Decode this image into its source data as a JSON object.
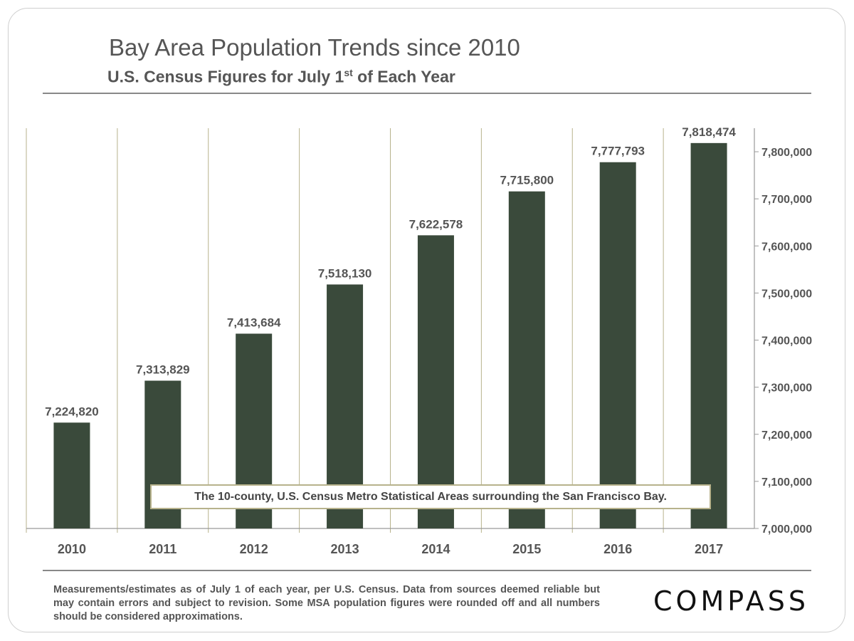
{
  "title": "Bay Area Population Trends since 2010",
  "subtitle": {
    "text": "U.S. Census Figures for July 1",
    "sup": "st",
    "tail": " of Each Year"
  },
  "chart_data": {
    "type": "bar",
    "categories": [
      "2010",
      "2011",
      "2012",
      "2013",
      "2014",
      "2015",
      "2016",
      "2017"
    ],
    "values": [
      7224820,
      7313829,
      7413684,
      7518130,
      7622578,
      7715800,
      7777793,
      7818474
    ],
    "data_labels": [
      "7,224,820",
      "7,313,829",
      "7,413,684",
      "7,518,130",
      "7,622,578",
      "7,715,800",
      "7,777,793",
      "7,818,474"
    ],
    "ylim": [
      7000000,
      7850000
    ],
    "yticks": [
      7000000,
      7100000,
      7200000,
      7300000,
      7400000,
      7500000,
      7600000,
      7700000,
      7800000
    ],
    "ytick_labels": [
      "7,000,000",
      "7,100,000",
      "7,200,000",
      "7,300,000",
      "7,400,000",
      "7,500,000",
      "7,600,000",
      "7,700,000",
      "7,800,000"
    ],
    "yaxis_position": "right",
    "grid": "vertical lines between categories",
    "bar_color": "#3a4a3b",
    "grid_color": "#b7b28c",
    "annotation": "The 10-county, U.S. Census Metro Statistical Areas surrounding the San Francisco Bay."
  },
  "footnote": "Measurements/estimates as of July 1 of each year, per U.S. Census. Data from sources deemed reliable but may contain errors and subject to revision. Some MSA population figures were rounded off and all numbers should be considered approximations.",
  "logo": "COMPASS"
}
